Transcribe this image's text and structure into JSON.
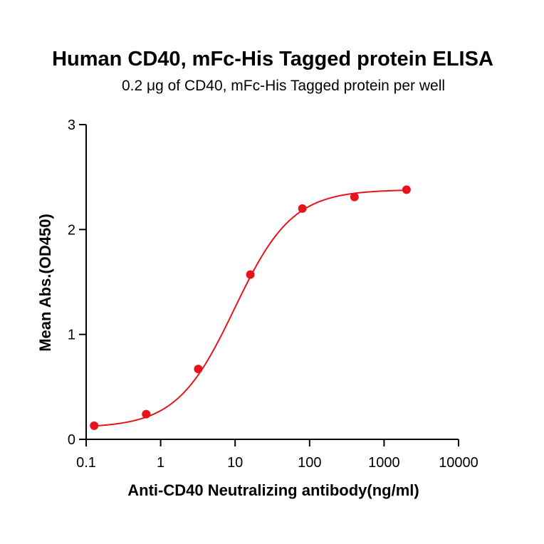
{
  "chart_data": {
    "type": "scatter",
    "title": "Human CD40, mFc-His Tagged protein ELISA",
    "subtitle": "0.2 μg of CD40, mFc-His Tagged protein per well",
    "xlabel": "Anti-CD40 Neutralizing antibody(ng/ml)",
    "ylabel": "Mean Abs.(OD450)",
    "x_scale": "log",
    "xlim": [
      0.1,
      10000
    ],
    "ylim": [
      0,
      3
    ],
    "x_ticks": [
      "0.1",
      "1",
      "10",
      "100",
      "1000",
      "10000"
    ],
    "y_ticks": [
      "0",
      "1",
      "2",
      "3"
    ],
    "grid": false,
    "colors": {
      "series": "#e8141c",
      "axis": "#000000"
    },
    "series": [
      {
        "x": [
          0.128,
          0.64,
          3.2,
          16,
          80,
          400,
          2000
        ],
        "y": [
          0.13,
          0.24,
          0.67,
          1.57,
          2.2,
          2.31,
          2.38
        ],
        "fit": "sigmoid"
      }
    ]
  }
}
